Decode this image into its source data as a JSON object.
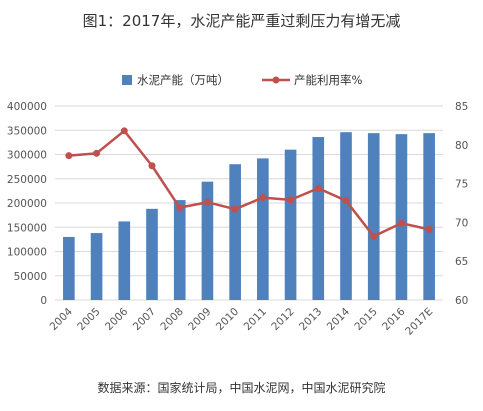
{
  "title": "图1：2017年，水泥产能严重过剩压力有增无减",
  "source_note": "数据来源：国家统计局，中国水泥网，中国水泥研究院",
  "chart_data": {
    "type": "bar",
    "categories": [
      "2004",
      "2005",
      "2006",
      "2007",
      "2008",
      "2009",
      "2010",
      "2011",
      "2012",
      "2013",
      "2014",
      "2015",
      "2016",
      "2017E"
    ],
    "series": [
      {
        "name": "水泥产能（万吨）",
        "type": "bar",
        "axis": "left",
        "color": "#4F81BD",
        "values": [
          130000,
          138000,
          162000,
          188000,
          206000,
          244000,
          280000,
          292000,
          310000,
          336000,
          346000,
          344000,
          342000,
          344000
        ]
      },
      {
        "name": "产能利用率%",
        "type": "line",
        "axis": "right",
        "color": "#C0504D",
        "values": [
          78.6,
          78.9,
          81.8,
          77.3,
          71.9,
          72.6,
          71.7,
          73.2,
          72.9,
          74.4,
          72.8,
          68.2,
          69.9,
          69.1
        ]
      }
    ],
    "y_left": {
      "min": 0,
      "max": 400000,
      "step": 50000,
      "ticks": [
        "0",
        "50000",
        "100000",
        "150000",
        "200000",
        "250000",
        "300000",
        "350000",
        "400000"
      ]
    },
    "y_right": {
      "min": 60,
      "max": 85,
      "step": 5,
      "ticks": [
        "60",
        "65",
        "70",
        "75",
        "80",
        "85"
      ]
    },
    "grid": true,
    "legend_position": "top"
  }
}
